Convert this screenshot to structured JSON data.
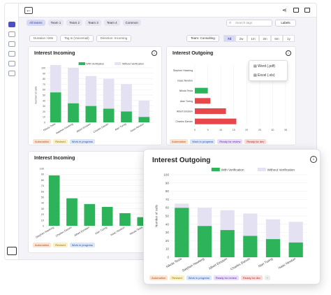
{
  "colors": {
    "accent": "#4b4fc4",
    "green": "#2db45a",
    "lavender": "#e4e2f2",
    "red": "#e8474a"
  },
  "header": {
    "back_icon": "arrow-left-icon",
    "share_icon": "share-icon",
    "calendar_icon": "calendar-icon",
    "export_icon": "export-icon"
  },
  "chips": [
    "All teams",
    "Team 1",
    "Team 2",
    "Team 3",
    "Team 4",
    "Common"
  ],
  "search": {
    "placeholder": "Search tags"
  },
  "labels_button": "Labels",
  "filters": [
    "Duration >28s",
    "Tag Is (Voicemail)",
    "Direction: Incoming"
  ],
  "team_select": "Team: Consulting",
  "ranges": [
    "7d",
    "2w",
    "1m",
    "3m",
    "6m",
    "1y"
  ],
  "card1": {
    "title": "Interest Incoming",
    "ylabel": "Number of calls",
    "tags": [
      "Automation",
      "Revised",
      "Work in progress"
    ]
  },
  "card2": {
    "title": "Interest Outgoing",
    "tags": [
      "Automation",
      "Work in progress",
      "Ready for review",
      "Ready for dev"
    ],
    "menu": {
      "word": "Word (.pdf)",
      "excel": "Excel (.xls)"
    }
  },
  "card3": {
    "title": "Interest Incoming",
    "tags": [
      "Automation",
      "Revised",
      "Work in progress"
    ]
  },
  "popup": {
    "title": "Interest Outgoing",
    "tags": [
      "Automation",
      "Revised",
      "Work in progress",
      "Ready for review",
      "Ready for dev"
    ]
  },
  "chart_data": [
    {
      "type": "bar",
      "title": "Interest Incoming",
      "categories": [
        "Nikola Tesla",
        "Stephen Hawking",
        "Albert Einstein",
        "Charles Darwin",
        "Alan Turing",
        "Isaac Newton"
      ],
      "series": [
        {
          "name": "With Verification",
          "values": [
            55,
            35,
            30,
            25,
            20,
            10
          ]
        },
        {
          "name": "Without Verification",
          "values": [
            50,
            65,
            55,
            55,
            50,
            30
          ]
        }
      ],
      "ylabel": "Number of calls",
      "ylim": [
        0,
        100
      ],
      "stacked": true,
      "legend": "top"
    },
    {
      "type": "bar",
      "orientation": "horizontal",
      "title": "Interest Outgoing",
      "categories": [
        "Stephen Hawking",
        "Isaac Newton",
        "Nikola Tesla",
        "Alan Turing",
        "Albert Einstein",
        "Charles Darwin"
      ],
      "values": [
        0,
        0,
        5,
        6,
        12,
        16
      ],
      "xlim": [
        0,
        35
      ]
    },
    {
      "type": "bar",
      "title": "Interest Incoming",
      "categories": [
        "Stephen Hawking",
        "Charles Darwin",
        "Albert Einstein",
        "Alan Turing",
        "Isaac Newton",
        "Nikola Tesla"
      ],
      "values": [
        88,
        48,
        38,
        33,
        22,
        15
      ],
      "ylim": [
        0,
        100
      ]
    },
    {
      "type": "bar",
      "title": "Interest Outgoing",
      "categories": [
        "Nikola Tesla",
        "Stephen Hawking",
        "Albert Einstein",
        "Charles Darwin",
        "Alan Turing",
        "Isaac Newton"
      ],
      "series": [
        {
          "name": "With Verification",
          "values": [
            60,
            38,
            33,
            26,
            22,
            18
          ]
        },
        {
          "name": "Without Verification",
          "values": [
            5,
            22,
            24,
            27,
            24,
            25
          ]
        }
      ],
      "ylabel": "Number of calls",
      "ylim": [
        0,
        100
      ],
      "stacked": true,
      "legend": "top"
    }
  ]
}
